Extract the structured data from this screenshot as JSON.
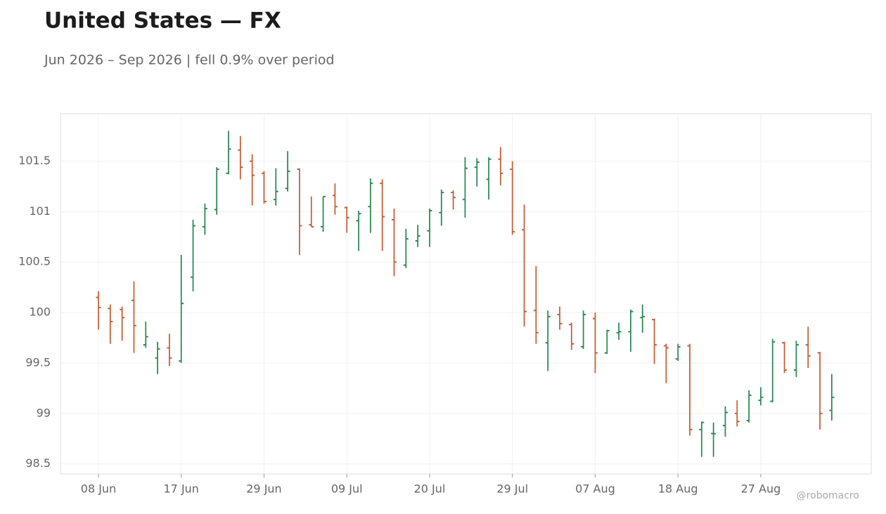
{
  "chart_data": {
    "type": "ohlc",
    "title": "United States — FX",
    "subtitle": "Jun 2026 – Sep 2026 | fell 0.9% over period",
    "credit": "@robomacro",
    "categories": [
      "08 Jun",
      null,
      null,
      null,
      null,
      null,
      null,
      "17 Jun",
      null,
      null,
      null,
      null,
      null,
      null,
      "29 Jun",
      null,
      null,
      null,
      null,
      null,
      null,
      "09 Jul",
      null,
      null,
      null,
      null,
      null,
      null,
      "20 Jul",
      null,
      null,
      null,
      null,
      null,
      null,
      "29 Jul",
      null,
      null,
      null,
      null,
      null,
      null,
      "07 Aug",
      null,
      null,
      null,
      null,
      null,
      null,
      "18 Aug",
      null,
      null,
      null,
      null,
      null,
      null,
      "27 Aug",
      null,
      null,
      null,
      null,
      null,
      null
    ],
    "open": [
      100.15,
      100.04,
      100.03,
      100.12,
      99.68,
      99.55,
      99.65,
      99.52,
      100.35,
      100.85,
      101.02,
      101.38,
      101.61,
      101.5,
      101.38,
      101.12,
      101.23,
      101.42,
      100.87,
      100.85,
      101.16,
      101.04,
      100.91,
      101.05,
      101.28,
      100.92,
      100.47,
      100.71,
      100.81,
      100.99,
      101.19,
      101.12,
      101.44,
      101.32,
      101.52,
      101.42,
      100.82,
      100.02,
      99.7,
      99.98,
      99.88,
      99.66,
      99.94,
      99.6,
      99.8,
      99.81,
      99.95,
      99.93,
      99.67,
      99.54,
      99.67,
      98.84,
      98.8,
      98.88,
      99.0,
      98.93,
      99.13,
      99.12,
      99.7,
      99.43,
      99.68,
      99.6,
      99.03
    ],
    "high": [
      100.21,
      100.08,
      100.06,
      100.31,
      99.91,
      99.71,
      99.79,
      100.57,
      100.92,
      101.08,
      101.44,
      101.8,
      101.75,
      101.57,
      101.4,
      101.43,
      101.6,
      101.43,
      101.15,
      101.15,
      101.28,
      101.05,
      101.01,
      101.33,
      101.32,
      101.03,
      100.83,
      100.87,
      101.03,
      101.22,
      101.21,
      101.54,
      101.53,
      101.54,
      101.64,
      101.5,
      101.07,
      100.46,
      100.02,
      100.06,
      99.9,
      100.02,
      100.0,
      99.83,
      99.9,
      100.03,
      100.08,
      99.94,
      99.69,
      99.69,
      99.69,
      98.92,
      98.91,
      99.07,
      99.13,
      99.23,
      99.26,
      99.74,
      99.71,
      99.72,
      99.86,
      99.61,
      99.39
    ],
    "low": [
      99.83,
      99.69,
      99.72,
      99.6,
      99.65,
      99.39,
      99.47,
      99.5,
      100.21,
      100.77,
      100.97,
      101.37,
      101.32,
      101.06,
      101.08,
      101.06,
      101.2,
      100.57,
      100.85,
      100.8,
      100.97,
      100.79,
      100.61,
      100.79,
      100.61,
      100.36,
      100.44,
      100.65,
      100.65,
      100.86,
      101.02,
      100.94,
      101.25,
      101.12,
      101.26,
      100.77,
      99.86,
      99.69,
      99.42,
      99.83,
      99.63,
      99.64,
      99.4,
      99.59,
      99.73,
      99.61,
      99.8,
      99.49,
      99.3,
      99.52,
      98.78,
      98.57,
      98.57,
      98.77,
      98.87,
      98.91,
      99.08,
      99.11,
      99.4,
      99.36,
      99.45,
      98.84,
      98.93
    ],
    "close": [
      100.05,
      99.91,
      99.95,
      99.87,
      99.76,
      99.64,
      99.55,
      100.09,
      100.86,
      101.03,
      101.42,
      101.62,
      101.44,
      101.36,
      101.1,
      101.2,
      101.4,
      100.86,
      100.85,
      101.15,
      101.05,
      100.94,
      100.98,
      101.28,
      100.95,
      100.5,
      100.73,
      100.76,
      101.01,
      101.19,
      101.14,
      101.43,
      101.49,
      101.52,
      101.38,
      100.8,
      100.01,
      99.8,
      99.96,
      99.89,
      99.69,
      99.98,
      99.6,
      99.82,
      99.81,
      100.01,
      99.96,
      99.68,
      99.65,
      99.66,
      98.84,
      98.91,
      98.8,
      99.01,
      98.92,
      99.18,
      99.16,
      99.71,
      99.43,
      99.68,
      99.57,
      99.0,
      99.16
    ],
    "up_color": "#2e8b57",
    "down_color": "#c4623a",
    "ylim": [
      98.4,
      101.97
    ],
    "yticks": [
      98.5,
      99,
      99.5,
      100,
      100.5,
      101,
      101.5
    ],
    "grid": true
  }
}
